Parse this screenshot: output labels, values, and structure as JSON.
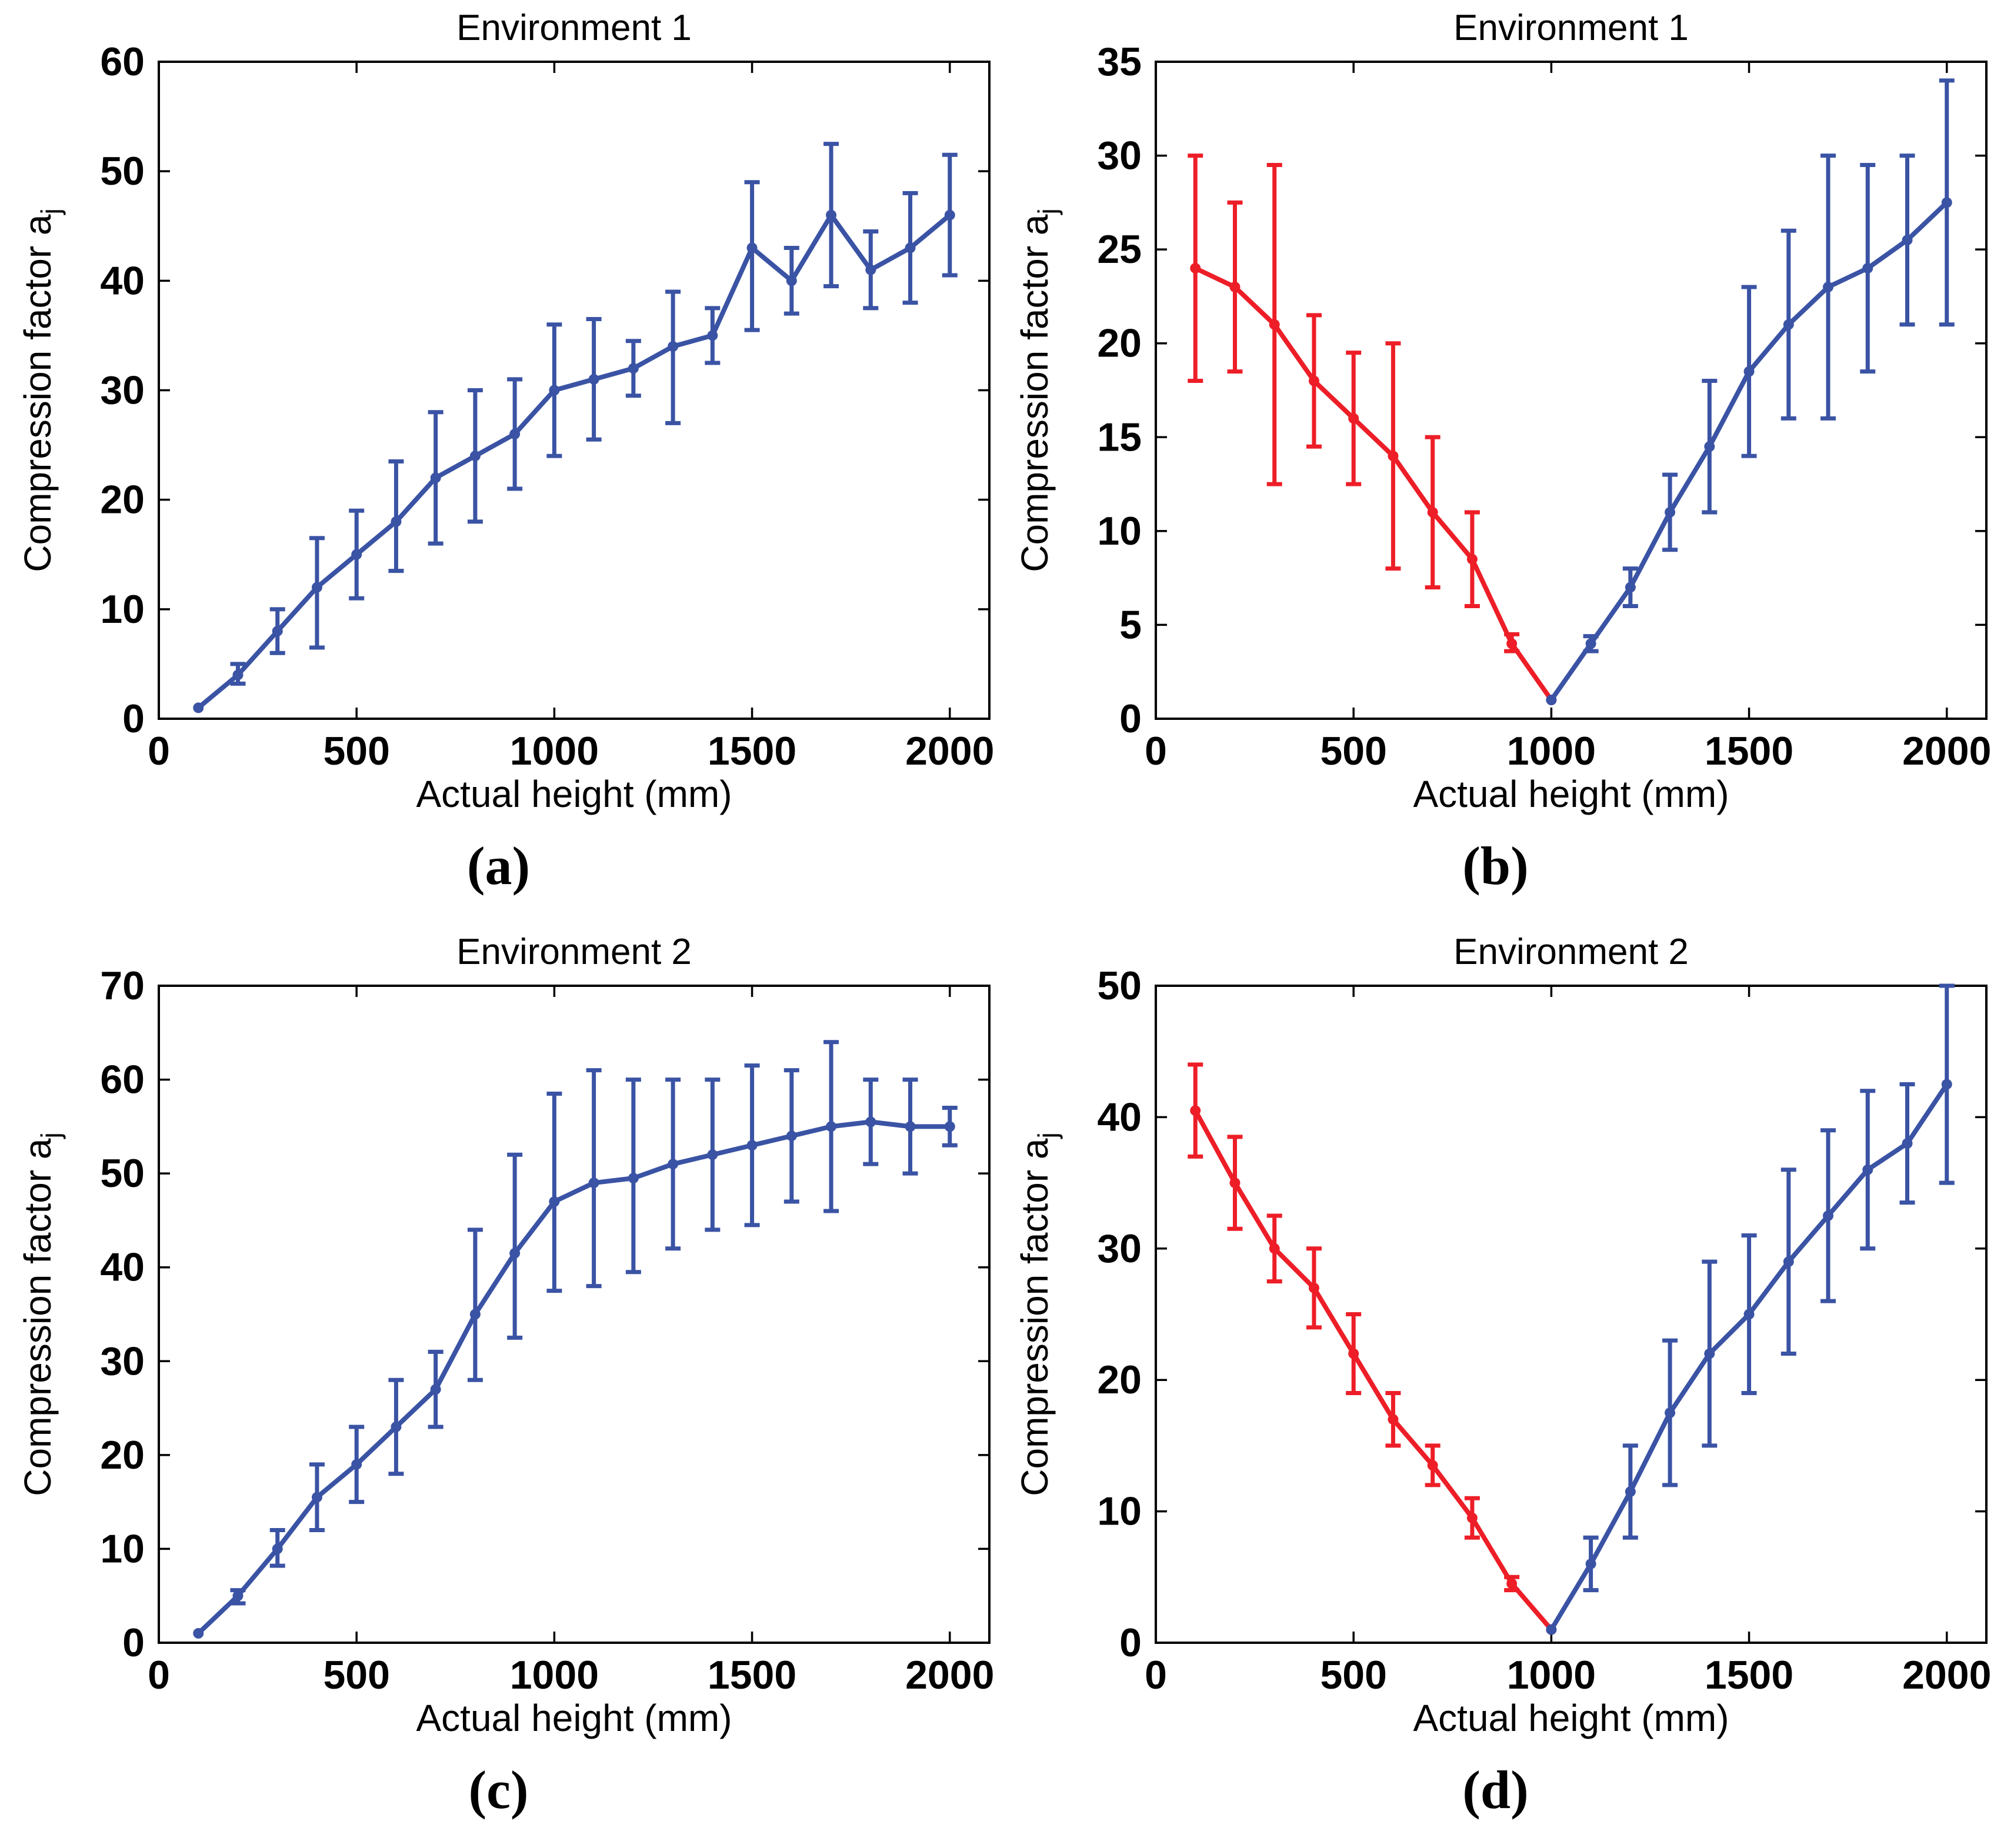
{
  "figure": {
    "background": "#ffffff",
    "axis_color": "#000000",
    "blue": "#3A53A4",
    "red": "#ED1E27"
  },
  "chart_data": [
    {
      "panel": "a",
      "type": "line",
      "title": "Environment 1",
      "xlabel": "Actual height (mm)",
      "ylabel": "Compression factor a",
      "ylabel_subscript": "j",
      "caption": "(a)",
      "xlim": [
        0,
        2100
      ],
      "ylim": [
        0,
        60
      ],
      "xticks": [
        0,
        500,
        1000,
        1500,
        2000
      ],
      "yticks": [
        0,
        10,
        20,
        30,
        40,
        50,
        60
      ],
      "grid": false,
      "legend": "none",
      "series": [
        {
          "name": "environment-1-compression",
          "color": "#3A53A4",
          "x": [
            100,
            200,
            300,
            400,
            500,
            600,
            700,
            800,
            900,
            1000,
            1100,
            1200,
            1300,
            1400,
            1500,
            1600,
            1700,
            1800,
            1900,
            2000
          ],
          "y": [
            1,
            4,
            8,
            12,
            15,
            18,
            22,
            24,
            26,
            30,
            31,
            32,
            34,
            35,
            43,
            40,
            46,
            41,
            43,
            46
          ],
          "err_low": [
            1,
            3.2,
            6,
            6.5,
            11,
            13.5,
            16,
            18,
            21,
            24,
            25.5,
            29.5,
            27,
            32.5,
            35.5,
            37,
            39.5,
            37.5,
            38,
            40.5
          ],
          "err_high": [
            1,
            5,
            10,
            16.5,
            19,
            23.5,
            28,
            30,
            31,
            36,
            36.5,
            34.5,
            39,
            37.5,
            49,
            43,
            52.5,
            44.5,
            48,
            51.5
          ]
        }
      ]
    },
    {
      "panel": "b",
      "type": "line",
      "title": "Environment 1",
      "xlabel": "Actual height (mm)",
      "ylabel": "Compression factor a",
      "ylabel_subscript": "j",
      "caption": "(b)",
      "xlim": [
        0,
        2100
      ],
      "ylim": [
        0,
        35
      ],
      "xticks": [
        0,
        500,
        1000,
        1500,
        2000
      ],
      "yticks": [
        0,
        5,
        10,
        15,
        20,
        25,
        30,
        35
      ],
      "grid": false,
      "legend": "none",
      "series": [
        {
          "name": "descending-branch",
          "color": "#ED1E27",
          "x": [
            100,
            200,
            300,
            400,
            500,
            600,
            700,
            800,
            900,
            1000
          ],
          "y": [
            24,
            23,
            21,
            18,
            16,
            14,
            11,
            8.5,
            4,
            1
          ],
          "err_low": [
            18,
            18.5,
            12.5,
            14.5,
            12.5,
            8,
            7,
            6,
            3.6,
            1
          ],
          "err_high": [
            30,
            27.5,
            29.5,
            21.5,
            19.5,
            20,
            15,
            11,
            4.5,
            1
          ]
        },
        {
          "name": "ascending-branch",
          "color": "#3A53A4",
          "x": [
            1000,
            1100,
            1200,
            1300,
            1400,
            1500,
            1600,
            1700,
            1800,
            1900,
            2000
          ],
          "y": [
            1,
            4,
            7,
            11,
            14.5,
            18.5,
            21,
            23,
            24,
            25.5,
            27.5
          ],
          "err_low": [
            1,
            3.6,
            6,
            9,
            11,
            14,
            16,
            16,
            18.5,
            21,
            21
          ],
          "err_high": [
            1,
            4.4,
            8,
            13,
            18,
            23,
            26,
            30,
            29.5,
            30,
            34
          ]
        }
      ]
    },
    {
      "panel": "c",
      "type": "line",
      "title": "Environment 2",
      "xlabel": "Actual height (mm)",
      "ylabel": "Compression factor a",
      "ylabel_subscript": "j",
      "caption": "(c)",
      "xlim": [
        0,
        2100
      ],
      "ylim": [
        0,
        70
      ],
      "xticks": [
        0,
        500,
        1000,
        1500,
        2000
      ],
      "yticks": [
        0,
        10,
        20,
        30,
        40,
        50,
        60,
        70
      ],
      "grid": false,
      "legend": "none",
      "series": [
        {
          "name": "environment-2-compression",
          "color": "#3A53A4",
          "x": [
            100,
            200,
            300,
            400,
            500,
            600,
            700,
            800,
            900,
            1000,
            1100,
            1200,
            1300,
            1400,
            1500,
            1600,
            1700,
            1800,
            1900,
            2000
          ],
          "y": [
            1,
            5,
            10,
            15.5,
            19,
            23,
            27,
            35,
            41.5,
            47,
            49,
            49.5,
            51,
            52,
            53,
            54,
            55,
            55.5,
            55,
            55
          ],
          "err_low": [
            1,
            4.2,
            8.2,
            12,
            15,
            18,
            23,
            28,
            32.5,
            37.5,
            38,
            39.5,
            42,
            44,
            44.5,
            47,
            46,
            51,
            50,
            53
          ],
          "err_high": [
            1,
            5.6,
            12,
            19,
            23,
            28,
            31,
            44,
            52,
            58.5,
            61,
            60,
            60,
            60,
            61.5,
            61,
            64,
            60,
            60,
            57
          ]
        }
      ]
    },
    {
      "panel": "d",
      "type": "line",
      "title": "Environment 2",
      "xlabel": "Actual height (mm)",
      "ylabel": "Compression factor a",
      "ylabel_subscript": "j",
      "caption": "(d)",
      "xlim": [
        0,
        2100
      ],
      "ylim": [
        0,
        50
      ],
      "xticks": [
        0,
        500,
        1000,
        1500,
        2000
      ],
      "yticks": [
        0,
        10,
        20,
        30,
        40,
        50
      ],
      "grid": false,
      "legend": "none",
      "series": [
        {
          "name": "descending-branch",
          "color": "#ED1E27",
          "x": [
            100,
            200,
            300,
            400,
            500,
            600,
            700,
            800,
            900,
            1000
          ],
          "y": [
            40.5,
            35,
            30,
            27,
            22,
            17,
            13.5,
            9.5,
            4.5,
            1
          ],
          "err_low": [
            37,
            31.5,
            27.5,
            24,
            19,
            15,
            12,
            8,
            4,
            1
          ],
          "err_high": [
            44,
            38.5,
            32.5,
            30,
            25,
            19,
            15,
            11,
            5,
            1
          ]
        },
        {
          "name": "ascending-branch",
          "color": "#3A53A4",
          "x": [
            1000,
            1100,
            1200,
            1300,
            1400,
            1500,
            1600,
            1700,
            1800,
            1900,
            2000
          ],
          "y": [
            1,
            6,
            11.5,
            17.5,
            22,
            25,
            29,
            32.5,
            36,
            38,
            42.5
          ],
          "err_low": [
            1,
            4,
            8,
            12,
            15,
            19,
            22,
            26,
            30,
            33.5,
            35
          ],
          "err_high": [
            1,
            8,
            15,
            23,
            29,
            31,
            36,
            39,
            42,
            42.5,
            50
          ]
        }
      ]
    }
  ]
}
